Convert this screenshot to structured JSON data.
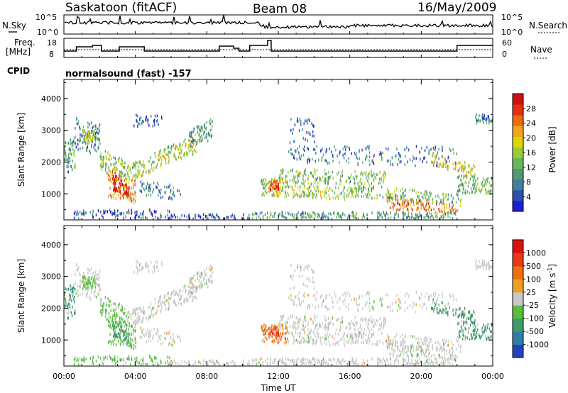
{
  "header": {
    "station": "Saskatoon (fitACF)",
    "beam": "Beam 08",
    "date": "16/May/2009",
    "cpid_label": "CPID",
    "cpid_value": "normalsound (fast) -157"
  },
  "aux": {
    "nsky_label": "N.Sky",
    "nsearch_label": "N.Search",
    "freq_label_line1": "Freq.",
    "freq_label_line2": "[MHz]",
    "nave_label": "Nave",
    "noise_ticks": [
      "10^5",
      "10^0"
    ],
    "freq_ticks": [
      "18",
      "8"
    ],
    "nave_ticks": [
      "60",
      "0"
    ]
  },
  "chart_data": [
    {
      "type": "heatmap",
      "name": "power",
      "xlabel": "",
      "ylabel": "Slant Range [km]",
      "xlim": [
        0,
        24
      ],
      "ylim": [
        180,
        4600
      ],
      "yticks": [
        "4000",
        "3000",
        "2000",
        "1000"
      ],
      "colorbar_label": "Power [dB]",
      "colorbar_ticks": [
        "28",
        "24",
        "20",
        "16",
        "12",
        "8",
        "4"
      ],
      "colors": [
        "#1d1dd6",
        "#2c4fa8",
        "#3f7fa0",
        "#4f9a72",
        "#66b85a",
        "#9cca3c",
        "#ded40c",
        "#f2a51c",
        "#ee6b12",
        "#e53010",
        "#d11010"
      ]
    },
    {
      "type": "heatmap",
      "name": "velocity",
      "xlabel": "Time UT",
      "ylabel": "Slant Range [km]",
      "xlim": [
        0,
        24
      ],
      "ylim": [
        180,
        4600
      ],
      "yticks": [
        "4000",
        "3000",
        "2000",
        "1000"
      ],
      "xticks": [
        "00:00",
        "04:00",
        "08:00",
        "12:00",
        "16:00",
        "20:00",
        "00:00"
      ],
      "colorbar_label": "Velocity [m s",
      "colorbar_unit_exp": "-1",
      "colorbar_ticks": [
        "1000",
        "500",
        "100",
        "25",
        "-25",
        "-100",
        "-500",
        "-1000"
      ],
      "colors": [
        "#2244bb",
        "#2f7fa5",
        "#3e9a6a",
        "#57bf3c",
        "#c8c8c8",
        "#f0a020",
        "#ee7010",
        "#e83a10",
        "#dd1010"
      ]
    }
  ]
}
